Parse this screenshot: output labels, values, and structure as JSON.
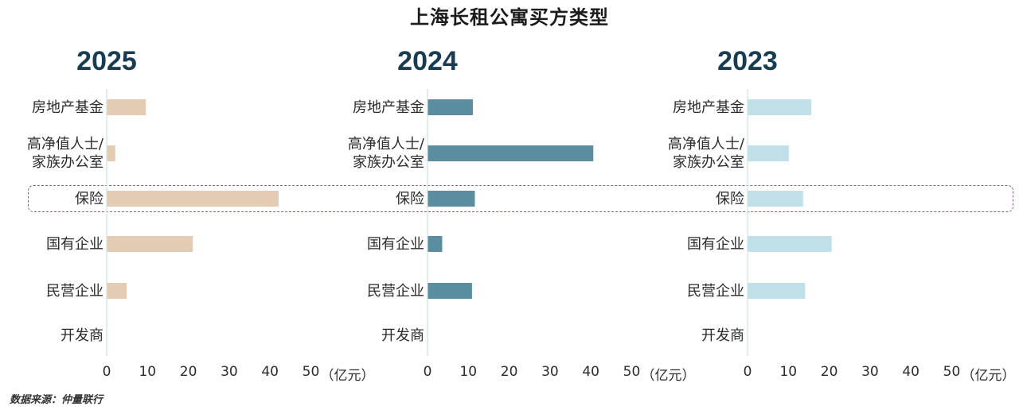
{
  "title": "上海长租公寓买方类型",
  "source": "数据来源：仲量联行",
  "unit_label": "（亿元）",
  "colors": {
    "2025": "#e3ccb3",
    "2024": "#5a8d9f",
    "2023": "#bfe0e8",
    "axis": "#d7e7ee",
    "highlight": "#8a5fa0"
  },
  "chart_data": [
    {
      "type": "bar",
      "title": "2025",
      "categories": [
        "房地产基金",
        "高净值人士/家族办公室",
        "保险",
        "国有企业",
        "民营企业",
        "开发商"
      ],
      "category_lines": [
        [
          "房地产基金"
        ],
        [
          "高净值人士/",
          "家族办公室"
        ],
        [
          "保险"
        ],
        [
          "国有企业"
        ],
        [
          "民营企业"
        ],
        [
          "开发商"
        ]
      ],
      "values": [
        9.5,
        2,
        42,
        21,
        4.8,
        0
      ],
      "xlim": [
        0,
        50
      ],
      "xticks": [
        0,
        10,
        20,
        30,
        40,
        50
      ],
      "xlabel": "（亿元）"
    },
    {
      "type": "bar",
      "title": "2024",
      "categories": [
        "房地产基金",
        "高净值人士/家族办公室",
        "保险",
        "国有企业",
        "民营企业",
        "开发商"
      ],
      "category_lines": [
        [
          "房地产基金"
        ],
        [
          "高净值人士/",
          "家族办公室"
        ],
        [
          "保险"
        ],
        [
          "国有企业"
        ],
        [
          "民营企业"
        ],
        [
          "开发商"
        ]
      ],
      "values": [
        11,
        40.5,
        11.5,
        3.5,
        10.8,
        0
      ],
      "xlim": [
        0,
        50
      ],
      "xticks": [
        0,
        10,
        20,
        30,
        40,
        50
      ],
      "xlabel": "（亿元）"
    },
    {
      "type": "bar",
      "title": "2023",
      "categories": [
        "房地产基金",
        "高净值人士/家族办公室",
        "保险",
        "国有企业",
        "民营企业",
        "开发商"
      ],
      "category_lines": [
        [
          "房地产基金"
        ],
        [
          "高净值人士/",
          "家族办公室"
        ],
        [
          "保险"
        ],
        [
          "国有企业"
        ],
        [
          "民营企业"
        ],
        [
          "开发商"
        ]
      ],
      "values": [
        15.5,
        10,
        13.5,
        20.5,
        14,
        0
      ],
      "xlim": [
        0,
        50
      ],
      "xticks": [
        0,
        10,
        20,
        30,
        40,
        50
      ],
      "xlabel": "（亿元）"
    }
  ]
}
